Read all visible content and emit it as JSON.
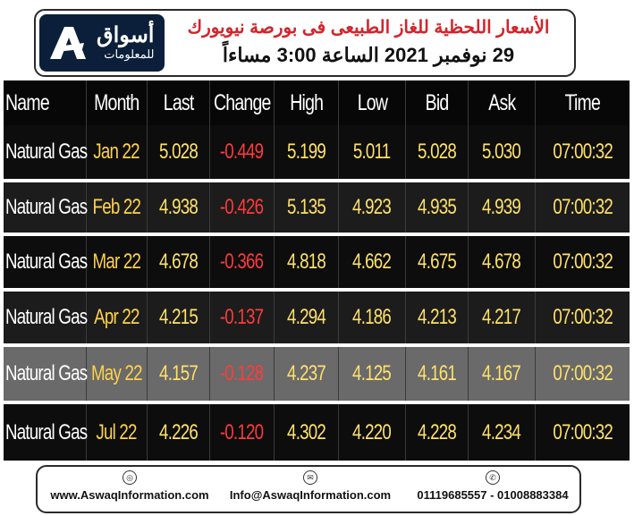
{
  "header": {
    "logo_main": "أسواق",
    "logo_sub": "للمعلومات",
    "title_line1": "الأسعار اللحظية للغاز الطبيعى فى بورصة نيويورك",
    "title_line2": "29 نوفمبر 2021 الساعة 3:00 مساءاً"
  },
  "table": {
    "columns": [
      "Name",
      "Month",
      "Last",
      "Change",
      "High",
      "Low",
      "Bid",
      "Ask",
      "Time"
    ],
    "rows": [
      {
        "name": "Natural Gas",
        "month": "Jan 22",
        "last": "5.028",
        "change": "-0.449",
        "high": "5.199",
        "low": "5.011",
        "bid": "5.028",
        "ask": "5.030",
        "time": "07:00:32"
      },
      {
        "name": "Natural Gas",
        "month": "Feb 22",
        "last": "4.938",
        "change": "-0.426",
        "high": "5.135",
        "low": "4.923",
        "bid": "4.935",
        "ask": "4.939",
        "time": "07:00:32"
      },
      {
        "name": "Natural Gas",
        "month": "Mar 22",
        "last": "4.678",
        "change": "-0.366",
        "high": "4.818",
        "low": "4.662",
        "bid": "4.675",
        "ask": "4.678",
        "time": "07:00:32"
      },
      {
        "name": "Natural Gas",
        "month": "Apr 22",
        "last": "4.215",
        "change": "-0.137",
        "high": "4.294",
        "low": "4.186",
        "bid": "4.213",
        "ask": "4.217",
        "time": "07:00:32"
      },
      {
        "name": "Natural Gas",
        "month": "May 22",
        "last": "4.157",
        "change": "-0.128",
        "high": "4.237",
        "low": "4.125",
        "bid": "4.161",
        "ask": "4.167",
        "time": "07:00:32"
      },
      {
        "name": "Natural Gas",
        "month": "Jul 22",
        "last": "4.226",
        "change": "-0.120",
        "high": "4.302",
        "low": "4.220",
        "bid": "4.228",
        "ask": "4.234",
        "time": "07:00:32"
      }
    ]
  },
  "footer": {
    "website": "www.AswaqInformation.com",
    "email": "Info@AswaqInformation.com",
    "phones": "01119685557 - 01008883384",
    "website_icon": "globe-icon",
    "email_icon": "mail-icon",
    "phone_icon": "phone-icon"
  },
  "colors": {
    "title_red": "#d4242a",
    "logo_navy": "#0b1f3a",
    "value_yellow": "#ffe26a",
    "change_red": "#ff3b3b"
  }
}
